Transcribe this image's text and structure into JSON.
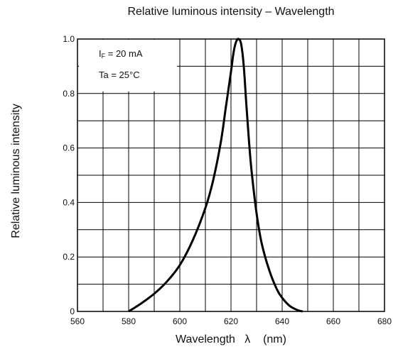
{
  "chart_data": {
    "type": "line",
    "title": "Relative luminous intensity – Wavelength",
    "xlabel": "Wavelength   λ    (nm)",
    "ylabel": "Relative luminous intensity",
    "xlim": [
      560,
      680
    ],
    "ylim": [
      0,
      1.0
    ],
    "x_ticks": [
      "560",
      "580",
      "600",
      "620",
      "640",
      "660",
      "680"
    ],
    "y_ticks": [
      "0",
      "0.2",
      "0.4",
      "0.6",
      "0.8",
      "1.0"
    ],
    "grid": true,
    "annotations": {
      "condition_1_prefix": "I",
      "condition_1_sub": "F",
      "condition_1_rest": " = 20 mA",
      "condition_2": "Ta = 25°C"
    },
    "series": [
      {
        "x": [
          580,
          585,
          590,
          595,
          600,
          605,
          610,
          613,
          616,
          618,
          620,
          621,
          622,
          623,
          624,
          625,
          626,
          627,
          628,
          630,
          632,
          635,
          638,
          640,
          643,
          646,
          648
        ],
        "y": [
          0.0,
          0.03,
          0.065,
          0.11,
          0.17,
          0.26,
          0.38,
          0.48,
          0.62,
          0.75,
          0.88,
          0.95,
          0.99,
          1.0,
          0.98,
          0.9,
          0.76,
          0.63,
          0.52,
          0.36,
          0.25,
          0.15,
          0.08,
          0.05,
          0.02,
          0.005,
          0.0
        ]
      }
    ]
  }
}
